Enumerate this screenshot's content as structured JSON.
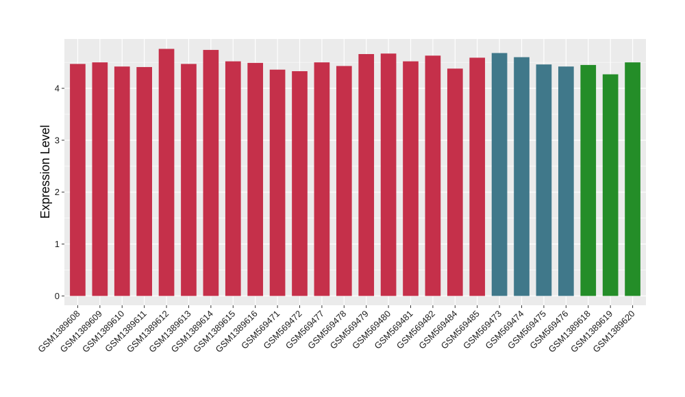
{
  "chart_data": {
    "type": "bar",
    "title": "",
    "xlabel": "",
    "ylabel": "Expression Level",
    "ylim": [
      -0.18,
      4.95
    ],
    "yticks": [
      0,
      1,
      2,
      3,
      4
    ],
    "grid": true,
    "legend": "none",
    "categories": [
      "GSM1389608",
      "GSM1389609",
      "GSM1389610",
      "GSM1389611",
      "GSM1389612",
      "GSM1389613",
      "GSM1389614",
      "GSM1389615",
      "GSM1389616",
      "GSM569471",
      "GSM569472",
      "GSM569477",
      "GSM569478",
      "GSM569479",
      "GSM569480",
      "GSM569481",
      "GSM569482",
      "GSM569484",
      "GSM569485",
      "GSM569473",
      "GSM569474",
      "GSM569475",
      "GSM569476",
      "GSM1389618",
      "GSM1389619",
      "GSM1389620"
    ],
    "values": [
      4.47,
      4.5,
      4.42,
      4.41,
      4.76,
      4.47,
      4.74,
      4.52,
      4.49,
      4.36,
      4.33,
      4.5,
      4.43,
      4.66,
      4.67,
      4.52,
      4.63,
      4.38,
      4.59,
      4.68,
      4.6,
      4.46,
      4.42,
      4.45,
      4.27,
      4.5
    ],
    "groups": [
      0,
      0,
      0,
      0,
      0,
      0,
      0,
      0,
      0,
      0,
      0,
      0,
      0,
      0,
      0,
      0,
      0,
      0,
      0,
      1,
      1,
      1,
      1,
      2,
      2,
      2
    ],
    "colors": [
      "#c5304a",
      "#40788a",
      "#248d28"
    ],
    "panel_color": "#ebebeb",
    "grid_color": "#ffffff"
  }
}
